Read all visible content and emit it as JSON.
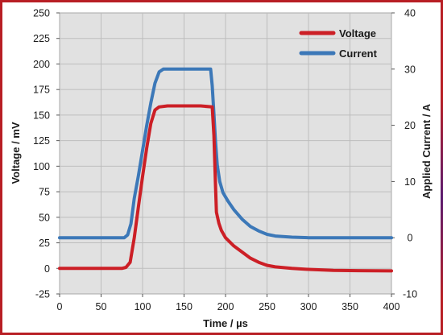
{
  "chart_data": {
    "type": "line",
    "xlabel": "Time / µs",
    "ylabel": "Voltage / mV",
    "y2label": "Applied Current / A",
    "xlim": [
      0,
      400
    ],
    "ylim": [
      -25,
      250
    ],
    "y2lim": [
      -10,
      40
    ],
    "x_ticks": [
      0,
      50,
      100,
      150,
      200,
      250,
      300,
      350,
      400
    ],
    "y_ticks": [
      -25,
      0,
      25,
      50,
      75,
      100,
      125,
      150,
      175,
      200,
      225,
      250
    ],
    "y2_ticks": [
      -10,
      0,
      10,
      20,
      30,
      40
    ],
    "grid": true,
    "legend_position": "top-right",
    "series": [
      {
        "name": "Voltage",
        "axis": "left",
        "color": "#cc1f26",
        "points": [
          [
            0,
            0
          ],
          [
            75,
            0
          ],
          [
            80,
            1
          ],
          [
            85,
            6
          ],
          [
            90,
            30
          ],
          [
            95,
            60
          ],
          [
            100,
            90
          ],
          [
            105,
            118
          ],
          [
            110,
            142
          ],
          [
            115,
            155
          ],
          [
            120,
            158
          ],
          [
            130,
            159
          ],
          [
            150,
            159
          ],
          [
            170,
            159
          ],
          [
            184,
            158
          ],
          [
            186,
            130
          ],
          [
            188,
            80
          ],
          [
            189,
            55
          ],
          [
            192,
            44
          ],
          [
            195,
            37
          ],
          [
            200,
            30
          ],
          [
            210,
            22
          ],
          [
            220,
            16
          ],
          [
            230,
            10
          ],
          [
            240,
            6
          ],
          [
            250,
            3
          ],
          [
            260,
            1.5
          ],
          [
            280,
            0
          ],
          [
            300,
            -1
          ],
          [
            330,
            -2
          ],
          [
            360,
            -2.2
          ],
          [
            400,
            -2.5
          ]
        ]
      },
      {
        "name": "Current",
        "axis": "right",
        "color": "#3c78b8",
        "points": [
          [
            0,
            0
          ],
          [
            78,
            0
          ],
          [
            82,
            0.5
          ],
          [
            86,
            2.5
          ],
          [
            90,
            7
          ],
          [
            95,
            11
          ],
          [
            100,
            15.5
          ],
          [
            105,
            20
          ],
          [
            110,
            24
          ],
          [
            115,
            27.5
          ],
          [
            120,
            29.5
          ],
          [
            125,
            30
          ],
          [
            140,
            30
          ],
          [
            160,
            30
          ],
          [
            178,
            30
          ],
          [
            182,
            30
          ],
          [
            184,
            27
          ],
          [
            186,
            22
          ],
          [
            188,
            17
          ],
          [
            190,
            13
          ],
          [
            193,
            10
          ],
          [
            197,
            8
          ],
          [
            203,
            6.5
          ],
          [
            210,
            5
          ],
          [
            220,
            3.3
          ],
          [
            230,
            2
          ],
          [
            240,
            1.2
          ],
          [
            250,
            0.6
          ],
          [
            260,
            0.3
          ],
          [
            280,
            0.1
          ],
          [
            300,
            0
          ],
          [
            350,
            0
          ],
          [
            400,
            0
          ]
        ]
      }
    ]
  }
}
